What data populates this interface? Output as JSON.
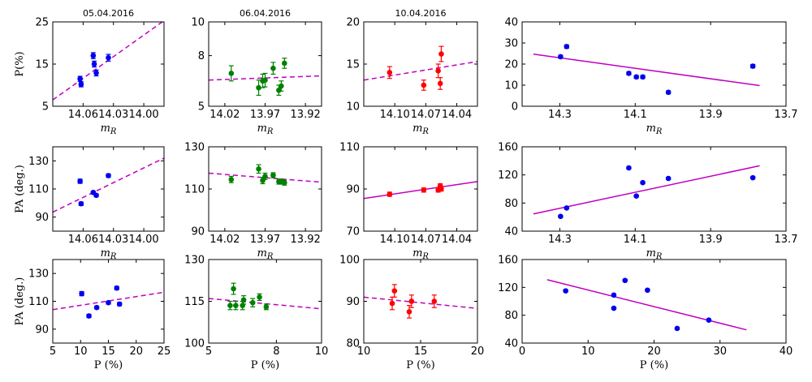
{
  "chart_data": [
    {
      "id": "r1c1",
      "type": "scatter",
      "title": "05.04.2016",
      "xlabel": "m_R",
      "ylabel": "P(%)",
      "xlim": [
        14.09,
        13.98
      ],
      "ylim": [
        5,
        25
      ],
      "xticks": [
        14.06,
        14.03,
        14.0
      ],
      "xtick_labels": [
        "14.06",
        "14.03",
        "14.00"
      ],
      "yticks": [
        5,
        15,
        25
      ],
      "ytick_labels": [
        "5",
        "15",
        "25"
      ],
      "color": "#0000ee",
      "fit_style": "dashed",
      "points": [
        {
          "x": 14.063,
          "y": 11.5,
          "err": 0.6
        },
        {
          "x": 14.062,
          "y": 10.2,
          "err": 0.6
        },
        {
          "x": 14.05,
          "y": 17.0,
          "err": 0.7
        },
        {
          "x": 14.049,
          "y": 15.0,
          "err": 0.7
        },
        {
          "x": 14.047,
          "y": 12.9,
          "err": 0.7
        },
        {
          "x": 14.035,
          "y": 16.5,
          "err": 0.8
        }
      ],
      "fit": [
        [
          14.09,
          6.5
        ],
        [
          13.98,
          25.3
        ]
      ]
    },
    {
      "id": "r1c2",
      "type": "scatter",
      "title": "06.04.2016",
      "xlabel": "m_R",
      "ylabel": "",
      "xlim": [
        14.04,
        13.9
      ],
      "ylim": [
        5,
        10
      ],
      "xticks": [
        14.02,
        13.97,
        13.92
      ],
      "xtick_labels": [
        "14.02",
        "13.97",
        "13.92"
      ],
      "yticks": [
        5,
        8,
        10
      ],
      "ytick_labels": [
        "5",
        "8",
        "10"
      ],
      "color": "#008000",
      "fit_style": "dashed",
      "points": [
        {
          "x": 14.012,
          "y": 6.95,
          "err": 0.45
        },
        {
          "x": 13.978,
          "y": 6.1,
          "err": 0.45
        },
        {
          "x": 13.973,
          "y": 6.5,
          "err": 0.4
        },
        {
          "x": 13.97,
          "y": 6.55,
          "err": 0.4
        },
        {
          "x": 13.96,
          "y": 7.25,
          "err": 0.35
        },
        {
          "x": 13.953,
          "y": 5.95,
          "err": 0.3
        },
        {
          "x": 13.95,
          "y": 6.2,
          "err": 0.3
        },
        {
          "x": 13.946,
          "y": 7.55,
          "err": 0.3
        }
      ],
      "fit": [
        [
          14.04,
          6.55
        ],
        [
          13.9,
          6.8
        ]
      ]
    },
    {
      "id": "r1c3",
      "type": "scatter",
      "title": "10.04.2016",
      "xlabel": "m_R",
      "ylabel": "",
      "xlim": [
        14.13,
        14.02
      ],
      "ylim": [
        10,
        20
      ],
      "xticks": [
        14.1,
        14.07,
        14.04
      ],
      "xtick_labels": [
        "14.10",
        "14.07",
        "14.04"
      ],
      "yticks": [
        10,
        15,
        20
      ],
      "ytick_labels": [
        "10",
        "15",
        "20"
      ],
      "color": "#ff0000",
      "fit_style": "dashed",
      "points": [
        {
          "x": 14.105,
          "y": 14.0,
          "err": 0.7
        },
        {
          "x": 14.072,
          "y": 12.5,
          "err": 0.6
        },
        {
          "x": 14.058,
          "y": 14.2,
          "err": 0.8
        },
        {
          "x": 14.056,
          "y": 12.7,
          "err": 0.7
        },
        {
          "x": 14.055,
          "y": 16.2,
          "err": 0.9
        }
      ],
      "fit": [
        [
          14.13,
          13.1
        ],
        [
          14.02,
          15.3
        ]
      ]
    },
    {
      "id": "r1c4",
      "type": "scatter",
      "title": "",
      "xlabel": "m_R",
      "ylabel": "",
      "xlim": [
        14.4,
        13.7
      ],
      "ylim": [
        0,
        40
      ],
      "xticks": [
        14.3,
        14.1,
        13.9,
        13.7
      ],
      "xtick_labels": [
        "14.3",
        "14.1",
        "13.9",
        "13.7"
      ],
      "yticks": [
        0,
        10,
        20,
        30,
        40
      ],
      "ytick_labels": [
        "0",
        "10",
        "20",
        "30",
        "40"
      ],
      "color": "#0000ee",
      "fit_style": "solid",
      "points": [
        {
          "x": 14.298,
          "y": 23.5,
          "err": 0.7
        },
        {
          "x": 14.282,
          "y": 28.3,
          "err": 0.8
        },
        {
          "x": 14.117,
          "y": 15.6,
          "err": 0.7
        },
        {
          "x": 14.097,
          "y": 13.9,
          "err": 0.7
        },
        {
          "x": 14.08,
          "y": 13.9,
          "err": 0.7
        },
        {
          "x": 14.012,
          "y": 6.6,
          "err": 0.7
        },
        {
          "x": 13.788,
          "y": 19.0,
          "err": 0.8
        }
      ],
      "fit": [
        [
          14.37,
          24.7
        ],
        [
          13.77,
          9.8
        ]
      ]
    },
    {
      "id": "r2c1",
      "type": "scatter",
      "title": "",
      "xlabel": "m_R",
      "ylabel": "PA (deg.)",
      "xlim": [
        14.09,
        13.98
      ],
      "ylim": [
        80,
        140
      ],
      "xticks": [
        14.06,
        14.03,
        14.0
      ],
      "xtick_labels": [
        "14.06",
        "14.03",
        "14.00"
      ],
      "yticks": [
        90,
        110,
        130
      ],
      "ytick_labels": [
        "90",
        "110",
        "130"
      ],
      "color": "#0000ee",
      "fit_style": "dashed",
      "points": [
        {
          "x": 14.063,
          "y": 115.5,
          "err": 1.5
        },
        {
          "x": 14.062,
          "y": 99.5,
          "err": 1.2
        },
        {
          "x": 14.05,
          "y": 107.5,
          "err": 1.0
        },
        {
          "x": 14.047,
          "y": 105.5,
          "err": 1.0
        },
        {
          "x": 14.035,
          "y": 119.5,
          "err": 1.2
        }
      ],
      "fit": [
        [
          14.09,
          93.5
        ],
        [
          13.98,
          132.0
        ]
      ]
    },
    {
      "id": "r2c2",
      "type": "scatter",
      "title": "",
      "xlabel": "m_R",
      "ylabel": "",
      "xlim": [
        14.04,
        13.9
      ],
      "ylim": [
        90,
        130
      ],
      "xticks": [
        14.02,
        13.97,
        13.92
      ],
      "xtick_labels": [
        "14.02",
        "13.97",
        "13.92"
      ],
      "yticks": [
        90,
        110,
        130
      ],
      "ytick_labels": [
        "90",
        "110",
        "130"
      ],
      "color": "#008000",
      "fit_style": "dashed",
      "points": [
        {
          "x": 14.012,
          "y": 114.5,
          "err": 1.5
        },
        {
          "x": 13.978,
          "y": 119.5,
          "err": 2.0
        },
        {
          "x": 13.973,
          "y": 114.0,
          "err": 1.5
        },
        {
          "x": 13.97,
          "y": 116.0,
          "err": 1.5
        },
        {
          "x": 13.96,
          "y": 116.5,
          "err": 1.2
        },
        {
          "x": 13.953,
          "y": 113.5,
          "err": 1.2
        },
        {
          "x": 13.95,
          "y": 113.5,
          "err": 1.2
        },
        {
          "x": 13.946,
          "y": 113.0,
          "err": 1.2
        }
      ],
      "fit": [
        [
          14.04,
          117.5
        ],
        [
          13.9,
          113.2
        ]
      ]
    },
    {
      "id": "r2c3",
      "type": "scatter",
      "title": "",
      "xlabel": "m_R",
      "ylabel": "",
      "xlim": [
        14.13,
        14.02
      ],
      "ylim": [
        70,
        110
      ],
      "xticks": [
        14.1,
        14.07,
        14.04
      ],
      "xtick_labels": [
        "14.10",
        "14.07",
        "14.04"
      ],
      "yticks": [
        70,
        90,
        110
      ],
      "ytick_labels": [
        "70",
        "90",
        "110"
      ],
      "color": "#ff0000",
      "fit_style": "solid",
      "points": [
        {
          "x": 14.105,
          "y": 87.5,
          "err": 1.0
        },
        {
          "x": 14.072,
          "y": 89.5,
          "err": 1.0
        },
        {
          "x": 14.058,
          "y": 89.5,
          "err": 1.0
        },
        {
          "x": 14.056,
          "y": 91.5,
          "err": 1.0
        },
        {
          "x": 14.055,
          "y": 90.0,
          "err": 1.0
        }
      ],
      "fit": [
        [
          14.13,
          85.5
        ],
        [
          14.02,
          93.5
        ]
      ]
    },
    {
      "id": "r2c4",
      "type": "scatter",
      "title": "",
      "xlabel": "m_R",
      "ylabel": "",
      "xlim": [
        14.4,
        13.7
      ],
      "ylim": [
        40,
        160
      ],
      "xticks": [
        14.3,
        14.1,
        13.9,
        13.7
      ],
      "xtick_labels": [
        "14.3",
        "14.1",
        "13.9",
        "13.7"
      ],
      "yticks": [
        40,
        80,
        120,
        160
      ],
      "ytick_labels": [
        "40",
        "80",
        "120",
        "160"
      ],
      "color": "#0000ee",
      "fit_style": "solid",
      "points": [
        {
          "x": 14.298,
          "y": 61.0,
          "err": 1.5
        },
        {
          "x": 14.282,
          "y": 73.0,
          "err": 1.5
        },
        {
          "x": 14.117,
          "y": 130.0,
          "err": 1.5
        },
        {
          "x": 14.097,
          "y": 90.0,
          "err": 1.5
        },
        {
          "x": 14.08,
          "y": 109.0,
          "err": 1.5
        },
        {
          "x": 14.012,
          "y": 115.0,
          "err": 1.5
        },
        {
          "x": 13.788,
          "y": 116.0,
          "err": 1.5
        }
      ],
      "fit": [
        [
          14.37,
          64.5
        ],
        [
          13.77,
          133.0
        ]
      ]
    },
    {
      "id": "r3c1",
      "type": "scatter",
      "title": "",
      "xlabel": "P (%)",
      "ylabel": "PA (deg.)",
      "xlim": [
        5,
        25
      ],
      "ylim": [
        80,
        140
      ],
      "xticks": [
        5,
        10,
        15,
        20,
        25
      ],
      "xtick_labels": [
        "5",
        "10",
        "15",
        "20",
        "25"
      ],
      "yticks": [
        90,
        110,
        130
      ],
      "ytick_labels": [
        "90",
        "110",
        "130"
      ],
      "color": "#0000ee",
      "fit_style": "dashed",
      "points": [
        {
          "x": 10.2,
          "y": 115.5,
          "err": 1.5
        },
        {
          "x": 11.5,
          "y": 99.5,
          "err": 1.2
        },
        {
          "x": 12.9,
          "y": 105.5,
          "err": 1.0
        },
        {
          "x": 15.0,
          "y": 109.0,
          "err": 1.0
        },
        {
          "x": 16.5,
          "y": 119.5,
          "err": 1.2
        },
        {
          "x": 17.0,
          "y": 108.0,
          "err": 1.2
        }
      ],
      "fit": [
        [
          5,
          104.0
        ],
        [
          25,
          116.5
        ]
      ]
    },
    {
      "id": "r3c2",
      "type": "scatter",
      "title": "",
      "xlabel": "P (%)",
      "ylabel": "",
      "xlim": [
        5,
        10
      ],
      "ylim": [
        100,
        130
      ],
      "xticks": [
        5,
        8,
        10
      ],
      "xtick_labels": [
        "5",
        "8",
        "10"
      ],
      "yticks": [
        100,
        115,
        130
      ],
      "ytick_labels": [
        "100",
        "115",
        "130"
      ],
      "color": "#008000",
      "fit_style": "dashed",
      "points": [
        {
          "x": 5.95,
          "y": 113.5,
          "err": 1.5
        },
        {
          "x": 6.1,
          "y": 119.5,
          "err": 2.0
        },
        {
          "x": 6.2,
          "y": 113.5,
          "err": 1.5
        },
        {
          "x": 6.5,
          "y": 113.5,
          "err": 1.5
        },
        {
          "x": 6.55,
          "y": 115.5,
          "err": 1.5
        },
        {
          "x": 6.95,
          "y": 114.5,
          "err": 1.5
        },
        {
          "x": 7.25,
          "y": 116.5,
          "err": 1.2
        },
        {
          "x": 7.55,
          "y": 113.0,
          "err": 1.0
        }
      ],
      "fit": [
        [
          5,
          116.0
        ],
        [
          10,
          112.3
        ]
      ]
    },
    {
      "id": "r3c3",
      "type": "scatter",
      "title": "",
      "xlabel": "P (%)",
      "ylabel": "",
      "xlim": [
        10,
        20
      ],
      "ylim": [
        80,
        100
      ],
      "xticks": [
        10,
        15,
        20
      ],
      "xtick_labels": [
        "10",
        "15",
        "20"
      ],
      "yticks": [
        80,
        90,
        100
      ],
      "ytick_labels": [
        "80",
        "90",
        "100"
      ],
      "color": "#ff0000",
      "fit_style": "dashed",
      "points": [
        {
          "x": 12.5,
          "y": 89.5,
          "err": 1.5
        },
        {
          "x": 12.7,
          "y": 92.5,
          "err": 1.5
        },
        {
          "x": 14.0,
          "y": 87.5,
          "err": 1.5
        },
        {
          "x": 14.2,
          "y": 90.0,
          "err": 1.5
        },
        {
          "x": 16.2,
          "y": 90.0,
          "err": 1.5
        }
      ],
      "fit": [
        [
          10,
          91.0
        ],
        [
          20,
          88.3
        ]
      ]
    },
    {
      "id": "r3c4",
      "type": "scatter",
      "title": "",
      "xlabel": "P (%)",
      "ylabel": "",
      "xlim": [
        0,
        40
      ],
      "ylim": [
        40,
        160
      ],
      "xticks": [
        0,
        10,
        20,
        30,
        40
      ],
      "xtick_labels": [
        "0",
        "10",
        "20",
        "30",
        "40"
      ],
      "yticks": [
        40,
        80,
        120,
        160
      ],
      "ytick_labels": [
        "40",
        "80",
        "120",
        "160"
      ],
      "color": "#0000ee",
      "fit_style": "solid",
      "points": [
        {
          "x": 6.6,
          "y": 115.0,
          "err": 1.5
        },
        {
          "x": 13.9,
          "y": 109.0,
          "err": 1.5
        },
        {
          "x": 13.9,
          "y": 90.0,
          "err": 1.5
        },
        {
          "x": 15.6,
          "y": 130.0,
          "err": 1.5
        },
        {
          "x": 19.0,
          "y": 116.0,
          "err": 1.5
        },
        {
          "x": 23.5,
          "y": 61.0,
          "err": 1.5
        },
        {
          "x": 28.3,
          "y": 73.0,
          "err": 1.5
        }
      ],
      "fit": [
        [
          3.8,
          131.0
        ],
        [
          34,
          59.0
        ]
      ]
    }
  ],
  "fit_color": "#c000c0"
}
